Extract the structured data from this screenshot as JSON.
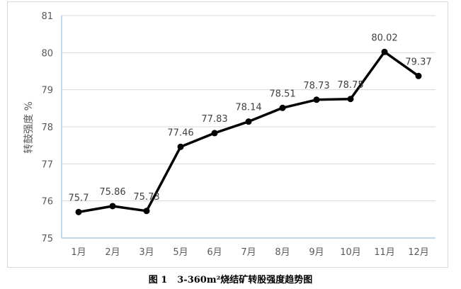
{
  "chart_data": {
    "type": "line",
    "categories": [
      "1月",
      "2月",
      "3月",
      "5月",
      "6月",
      "7月",
      "8月",
      "9月",
      "10月",
      "11月",
      "12月"
    ],
    "series": [
      {
        "values": [
          75.7,
          75.86,
          75.73,
          77.46,
          77.83,
          78.14,
          78.51,
          78.73,
          78.75,
          80.02,
          79.37
        ],
        "labels": [
          "75.7",
          "75.86",
          "75.73",
          "77.46",
          "77.83",
          "78.14",
          "78.51",
          "78.73",
          "78.75",
          "80.02",
          "79.37"
        ]
      }
    ],
    "ylabel": "转鼓强度 %",
    "ylim": [
      75,
      81
    ],
    "yticks": [
      "75",
      "76",
      "77",
      "78",
      "79",
      "80",
      "81"
    ],
    "grid": true,
    "line_color": "#000000",
    "grid_color": "#d9d9d9",
    "axis_color": "#8ab4d8"
  },
  "caption": {
    "figure_number": "图 1",
    "title": "3-360m²烧结矿转股强度趋势图"
  }
}
